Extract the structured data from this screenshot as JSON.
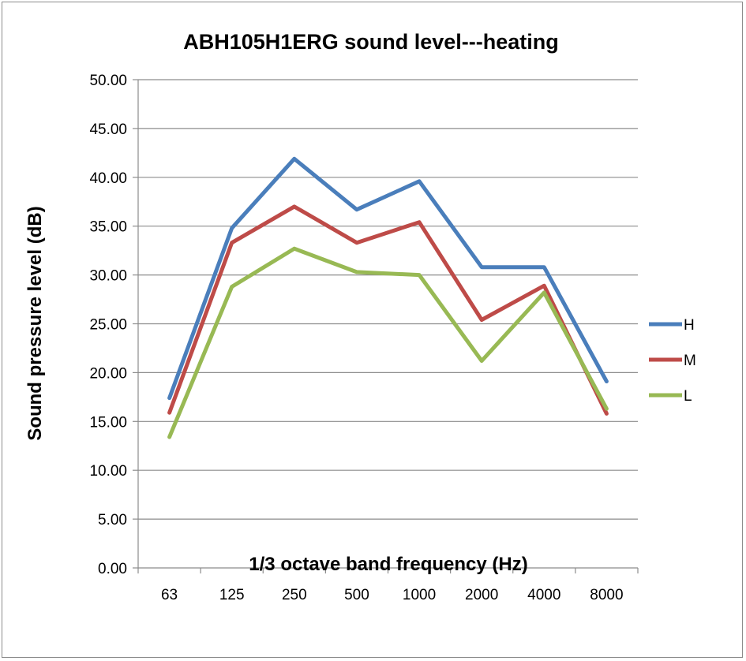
{
  "chart_data": {
    "type": "line",
    "title": "ABH105H1ERG sound level---heating",
    "xlabel": "1/3 octave band frequency (Hz)",
    "ylabel": "Sound pressure level (dB)",
    "categories": [
      "63",
      "125",
      "250",
      "500",
      "1000",
      "2000",
      "4000",
      "8000"
    ],
    "ylim": [
      0,
      50
    ],
    "ystep": 5,
    "ytick_labels": [
      "0.00",
      "5.00",
      "10.00",
      "15.00",
      "20.00",
      "25.00",
      "30.00",
      "35.00",
      "40.00",
      "45.00",
      "50.00"
    ],
    "grid": true,
    "legend_position": "right",
    "series": [
      {
        "name": "H",
        "color": "#4a7ebb",
        "values": [
          17.4,
          34.8,
          41.9,
          36.7,
          39.6,
          30.8,
          30.8,
          19.1
        ]
      },
      {
        "name": "M",
        "color": "#be4b48",
        "values": [
          15.9,
          33.3,
          37.0,
          33.3,
          35.4,
          25.4,
          28.9,
          15.8
        ]
      },
      {
        "name": "L",
        "color": "#98b954",
        "values": [
          13.4,
          28.8,
          32.7,
          30.3,
          30.0,
          21.2,
          28.2,
          16.3
        ]
      }
    ]
  }
}
